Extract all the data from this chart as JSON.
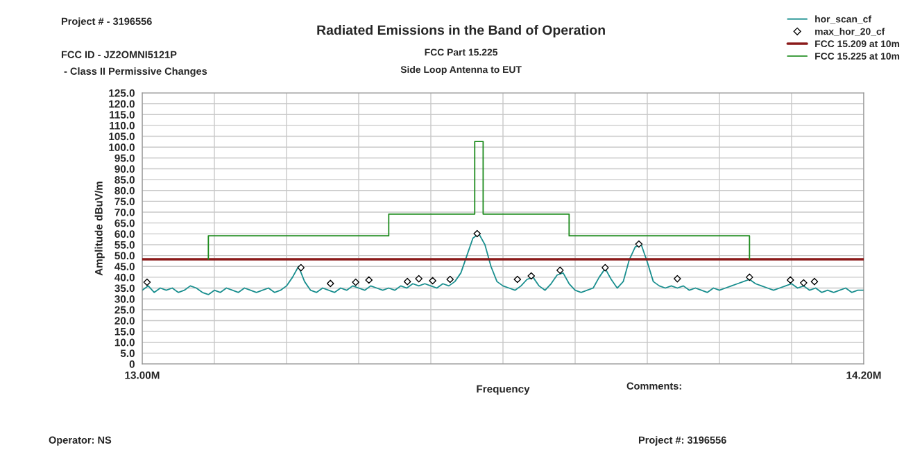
{
  "chart_data": {
    "type": "line",
    "title": "Radiated Emissions in the Band of Operation",
    "subtitle": "FCC Part 15.225\nSide Loop Antenna to EUT",
    "xlabel": "Frequency",
    "ylabel": "Amplitude dBuV/m",
    "annotations": [
      "Project # - 3196556",
      "FCC ID - JZ2OMNI5121P",
      " - Class II Permissive Changes",
      "Comments:",
      "Operator: NS",
      "Project #: 3196556"
    ],
    "xlim": [
      13.0,
      14.2
    ],
    "ylim": [
      0,
      125
    ],
    "xticks": [
      {
        "value": 13.0,
        "label": "13.00M"
      },
      {
        "value": 13.12,
        "label": null
      },
      {
        "value": 13.24,
        "label": null
      },
      {
        "value": 13.36,
        "label": null
      },
      {
        "value": 13.48,
        "label": null
      },
      {
        "value": 13.6,
        "label": null
      },
      {
        "value": 13.72,
        "label": null
      },
      {
        "value": 13.84,
        "label": null
      },
      {
        "value": 13.96,
        "label": null
      },
      {
        "value": 14.08,
        "label": null
      },
      {
        "value": 14.2,
        "label": "14.20M"
      }
    ],
    "yticks": [
      0,
      {
        "value": 5,
        "label": "5.0"
      },
      {
        "value": 10,
        "label": "10.0"
      },
      {
        "value": 15,
        "label": "15.0"
      },
      {
        "value": 20,
        "label": "20.0"
      },
      {
        "value": 25,
        "label": "25.0"
      },
      {
        "value": 30,
        "label": "30.0"
      },
      {
        "value": 35,
        "label": "35.0"
      },
      {
        "value": 40,
        "label": "40.0"
      },
      {
        "value": 45,
        "label": "45.0"
      },
      {
        "value": 50,
        "label": "50.0"
      },
      {
        "value": 55,
        "label": "55.0"
      },
      {
        "value": 60,
        "label": "60.0"
      },
      {
        "value": 65,
        "label": "65.0"
      },
      {
        "value": 70,
        "label": "70.0"
      },
      {
        "value": 75,
        "label": "75.0"
      },
      {
        "value": 80,
        "label": "80.0"
      },
      {
        "value": 85,
        "label": "85.0"
      },
      {
        "value": 90,
        "label": "90.0"
      },
      {
        "value": 95,
        "label": "95.0"
      },
      {
        "value": 100,
        "label": "100.0"
      },
      {
        "value": 105,
        "label": "105.0"
      },
      {
        "value": 110,
        "label": "110.0"
      },
      {
        "value": 115,
        "label": "115.0"
      },
      {
        "value": 120,
        "label": "120.0"
      },
      {
        "value": 125,
        "label": "125.0"
      }
    ],
    "grid": true,
    "legend": "top right",
    "series": [
      {
        "name": "hor_scan_cf",
        "color": "#1a8f8f",
        "x": [
          13.0,
          13.01,
          13.02,
          13.03,
          13.04,
          13.05,
          13.06,
          13.07,
          13.08,
          13.09,
          13.1,
          13.11,
          13.12,
          13.13,
          13.14,
          13.15,
          13.16,
          13.17,
          13.18,
          13.19,
          13.2,
          13.21,
          13.22,
          13.23,
          13.24,
          13.25,
          13.26,
          13.27,
          13.28,
          13.29,
          13.3,
          13.31,
          13.32,
          13.33,
          13.34,
          13.35,
          13.36,
          13.37,
          13.38,
          13.39,
          13.4,
          13.41,
          13.42,
          13.43,
          13.44,
          13.45,
          13.46,
          13.47,
          13.48,
          13.49,
          13.5,
          13.51,
          13.52,
          13.53,
          13.54,
          13.55,
          13.56,
          13.57,
          13.58,
          13.59,
          13.6,
          13.61,
          13.62,
          13.63,
          13.64,
          13.65,
          13.66,
          13.67,
          13.68,
          13.69,
          13.7,
          13.71,
          13.72,
          13.73,
          13.74,
          13.75,
          13.76,
          13.77,
          13.78,
          13.79,
          13.8,
          13.81,
          13.82,
          13.83,
          13.84,
          13.85,
          13.86,
          13.87,
          13.88,
          13.89,
          13.9,
          13.91,
          13.92,
          13.93,
          13.94,
          13.95,
          13.96,
          13.97,
          13.98,
          13.99,
          14.0,
          14.01,
          14.02,
          14.03,
          14.04,
          14.05,
          14.06,
          14.07,
          14.08,
          14.09,
          14.1,
          14.11,
          14.12,
          14.13,
          14.14,
          14.15,
          14.16,
          14.17,
          14.18,
          14.19,
          14.2
        ],
        "values": [
          34,
          36,
          33,
          35,
          34,
          35,
          33,
          34,
          36,
          35,
          33,
          32,
          34,
          33,
          35,
          34,
          33,
          35,
          34,
          33,
          34,
          35,
          33,
          34,
          36,
          40,
          45,
          38,
          34,
          33,
          35,
          34,
          33,
          35,
          34,
          36,
          35,
          34,
          36,
          35,
          34,
          35,
          34,
          36,
          35,
          37,
          36,
          37,
          36,
          35,
          37,
          36,
          38,
          42,
          50,
          58,
          60,
          55,
          45,
          38,
          36,
          35,
          34,
          36,
          39,
          40,
          36,
          34,
          37,
          41,
          42,
          37,
          34,
          33,
          34,
          35,
          40,
          44,
          39,
          35,
          38,
          48,
          54,
          55,
          47,
          38,
          36,
          35,
          36,
          35,
          36,
          34,
          35,
          34,
          33,
          35,
          34,
          35,
          36,
          37,
          38,
          39,
          37,
          36,
          35,
          34,
          35,
          36,
          37,
          35,
          36,
          34,
          35,
          33,
          34,
          33,
          34,
          35,
          33,
          34,
          34
        ]
      },
      {
        "name": "max_hor_20_cf",
        "type": "scatter",
        "marker": "diamond",
        "color": "#000000",
        "x": [
          13.008,
          13.264,
          13.313,
          13.355,
          13.377,
          13.441,
          13.46,
          13.483,
          13.512,
          13.557,
          13.624,
          13.647,
          13.695,
          13.77,
          13.826,
          13.89,
          14.01,
          14.078,
          14.1,
          14.118
        ],
        "values": [
          37.7,
          44.4,
          37.1,
          37.7,
          38.7,
          38.0,
          39.3,
          38.4,
          39.0,
          60.1,
          39.0,
          40.6,
          43.2,
          44.4,
          55.3,
          39.3,
          40.0,
          38.7,
          37.4,
          38.0
        ]
      },
      {
        "name": "FCC 15.209 at 10m",
        "color": "#8b1a1a",
        "x": [
          13.0,
          14.2
        ],
        "values": [
          48.3,
          48.3
        ]
      },
      {
        "name": "FCC 15.225 at 10m",
        "color": "#1e8c1e",
        "x": [
          13.11,
          13.11,
          13.41,
          13.41,
          13.553,
          13.553,
          13.567,
          13.567,
          13.71,
          13.71,
          14.01,
          14.01
        ],
        "values": [
          48.3,
          59.1,
          59.1,
          69.1,
          69.1,
          102.6,
          102.6,
          69.1,
          69.1,
          59.1,
          59.1,
          48.3
        ]
      }
    ]
  }
}
